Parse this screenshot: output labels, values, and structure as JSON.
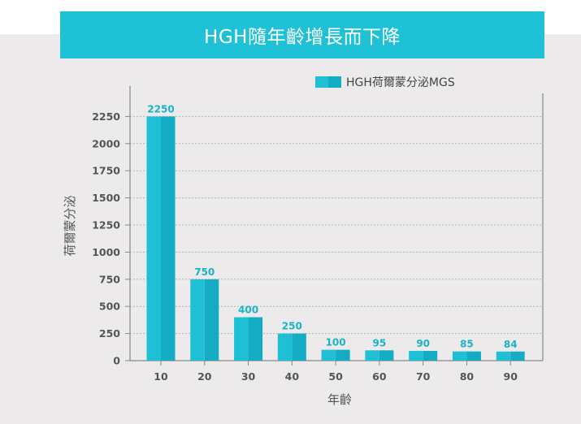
{
  "chart_data": {
    "type": "bar",
    "title": "HGH隨年齡增長而下降",
    "xlabel": "年齡",
    "ylabel": "荷爾蒙分泌",
    "categories": [
      "10",
      "20",
      "30",
      "40",
      "50",
      "60",
      "70",
      "80",
      "90"
    ],
    "series": [
      {
        "name": "HGH荷爾蒙分泌MGS",
        "values": [
          2250,
          750,
          400,
          250,
          100,
          95,
          90,
          85,
          84
        ]
      }
    ],
    "yticks": [
      "0",
      "250",
      "500",
      "750",
      "1000",
      "1250",
      "1500",
      "1750",
      "2000",
      "2250"
    ],
    "ylim": [
      0,
      2500
    ],
    "grid": true,
    "legend_position": "top",
    "colors": {
      "bar_main": "#1fbfd5",
      "bar_shade": "#14acc2",
      "banner": "#1fc1d6",
      "data_label": "#18b3c7",
      "panel_bg": "#eceaeb",
      "grid": "#b5b5b5",
      "axis": "#888888"
    }
  }
}
